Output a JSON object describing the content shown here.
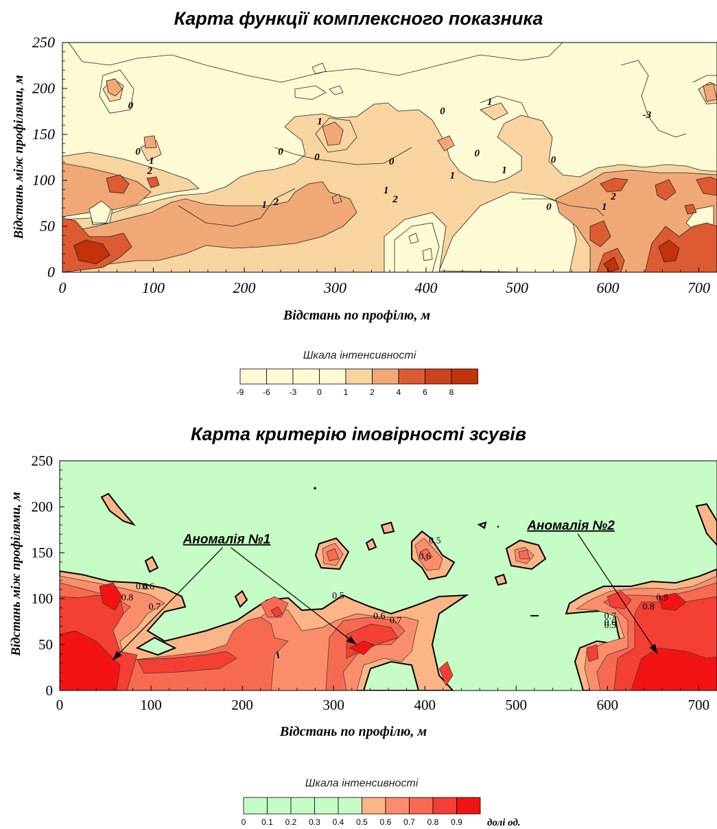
{
  "chart_data": [
    {
      "type": "heatmap",
      "title": "Карта функції комплексного показника",
      "xlabel": "Відстань по профілю, м",
      "ylabel": "Відстань між профілями, м",
      "xlim": [
        0,
        720
      ],
      "ylim": [
        0,
        250
      ],
      "x_ticks": [
        "0",
        "100",
        "200",
        "300",
        "400",
        "500",
        "600",
        "700"
      ],
      "y_ticks": [
        "0",
        "50",
        "100",
        "150",
        "200",
        "250"
      ],
      "colorbar": {
        "title": "Шкала інтенсивності",
        "ticks": [
          "-9",
          "-6",
          "-3",
          "0",
          "1",
          "2",
          "4",
          "6",
          "8"
        ],
        "colors": [
          "#fefbd4",
          "#fefbd4",
          "#fefbd4",
          "#fefbd4",
          "#f8d4a0",
          "#f0a877",
          "#dd5b32",
          "#c9431f",
          "#c4320c"
        ]
      },
      "contour_labels": [
        {
          "x": 75,
          "y": 178,
          "text": "0"
        },
        {
          "x": 83,
          "y": 128,
          "text": "0"
        },
        {
          "x": 98,
          "y": 118,
          "text": "1"
        },
        {
          "x": 96,
          "y": 107,
          "text": "2"
        },
        {
          "x": 222,
          "y": 70,
          "text": "1"
        },
        {
          "x": 235,
          "y": 73,
          "text": "2"
        },
        {
          "x": 240,
          "y": 128,
          "text": "0"
        },
        {
          "x": 280,
          "y": 122,
          "text": "0"
        },
        {
          "x": 283,
          "y": 161,
          "text": "1"
        },
        {
          "x": 362,
          "y": 117,
          "text": "0"
        },
        {
          "x": 356,
          "y": 86,
          "text": "1"
        },
        {
          "x": 366,
          "y": 76,
          "text": "2"
        },
        {
          "x": 418,
          "y": 172,
          "text": "0"
        },
        {
          "x": 429,
          "y": 102,
          "text": "1"
        },
        {
          "x": 456,
          "y": 126,
          "text": "0"
        },
        {
          "x": 470,
          "y": 182,
          "text": "1"
        },
        {
          "x": 486,
          "y": 108,
          "text": "1"
        },
        {
          "x": 540,
          "y": 119,
          "text": "0"
        },
        {
          "x": 535,
          "y": 68,
          "text": "0"
        },
        {
          "x": 596,
          "y": 68,
          "text": "1"
        },
        {
          "x": 606,
          "y": 79,
          "text": "2"
        },
        {
          "x": 643,
          "y": 168,
          "text": "-3"
        }
      ]
    },
    {
      "type": "heatmap",
      "title": "Карта критерію імовірності зсувів",
      "xlabel": "Відстань по профілю, м",
      "ylabel": "Відстань між профілями, м",
      "xlim": [
        0,
        720
      ],
      "ylim": [
        0,
        250
      ],
      "x_ticks": [
        "0",
        "100",
        "200",
        "300",
        "400",
        "500",
        "600",
        "700"
      ],
      "y_ticks": [
        "0",
        "50",
        "100",
        "150",
        "200",
        "250"
      ],
      "colorbar": {
        "title": "Шкала інтенсивності",
        "ticks": [
          "0",
          "0.1",
          "0.2",
          "0.3",
          "0.4",
          "0.5",
          "0.6",
          "0.7",
          "0.8",
          "0.9"
        ],
        "colors": [
          "#c6fdc6",
          "#c6fdc6",
          "#c6fdc6",
          "#c6fdc6",
          "#c6fdc6",
          "#fcb587",
          "#fa8d6c",
          "#f76a52",
          "#f43f34",
          "#f21414"
        ],
        "unit": "долі од."
      },
      "contour_labels": [
        {
          "x": 90,
          "y": 110,
          "text": "0.6"
        },
        {
          "x": 97,
          "y": 110,
          "text": "0.6"
        },
        {
          "x": 104,
          "y": 88,
          "text": "0.7"
        },
        {
          "x": 74,
          "y": 98,
          "text": "0.8"
        },
        {
          "x": 305,
          "y": 100,
          "text": "0.5"
        },
        {
          "x": 350,
          "y": 78,
          "text": "0.6"
        },
        {
          "x": 368,
          "y": 73,
          "text": "0.7"
        },
        {
          "x": 411,
          "y": 160,
          "text": "0.5"
        },
        {
          "x": 400,
          "y": 143,
          "text": "0.6"
        },
        {
          "x": 603,
          "y": 78,
          "text": "0.7"
        },
        {
          "x": 603,
          "y": 71,
          "text": "0.6"
        },
        {
          "x": 603,
          "y": 68,
          "text": "0.5"
        },
        {
          "x": 645,
          "y": 88,
          "text": "0.8"
        },
        {
          "x": 660,
          "y": 98,
          "text": "0.9"
        }
      ],
      "annotations": [
        {
          "text": "Аномалія №1",
          "x": 183,
          "y": 160,
          "arrows_to": [
            [
              58,
              33
            ],
            [
              325,
              50
            ]
          ]
        },
        {
          "text": "Аномалія №2",
          "x": 560,
          "y": 175,
          "arrows_to": [
            [
              655,
              40
            ]
          ]
        }
      ]
    }
  ]
}
